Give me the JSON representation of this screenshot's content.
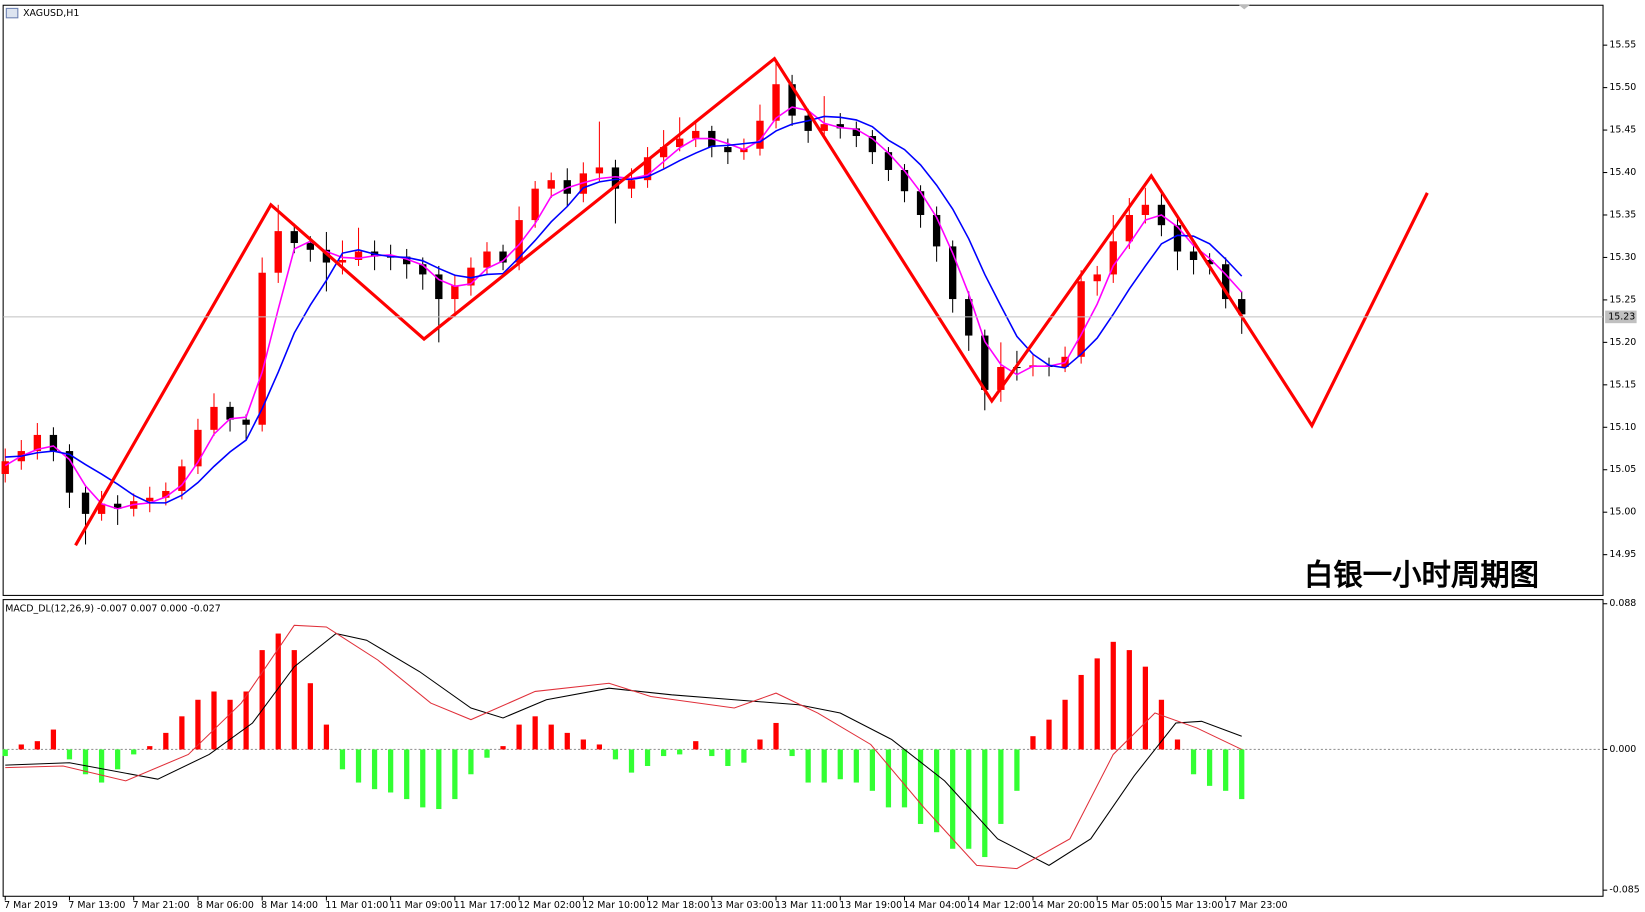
{
  "chart_data": [
    {
      "type": "candlestick",
      "title": "XAGUSD,H1",
      "annotation": "白银一小时周期图",
      "annotation_color": "#e00000",
      "xlim": [
        -0.13,
        99.5
      ],
      "ylim": [
        14.902,
        15.597
      ],
      "yticks": [
        14.95,
        {
          "value": 15,
          "label": "15.00"
        },
        15.05,
        {
          "value": 15.1,
          "label": "15.10"
        },
        15.15,
        {
          "value": 15.2,
          "label": "15.20"
        },
        15.25,
        {
          "value": 15.3,
          "label": "15.30"
        },
        15.35,
        {
          "value": 15.4,
          "label": "15.40"
        },
        15.45,
        {
          "value": 15.5,
          "label": "15.50"
        },
        15.55
      ],
      "last_price": 15.23,
      "up_color": "#ff0000",
      "down_color": "#000000",
      "open": [
        15.045,
        15.06,
        15.072,
        15.091,
        15.072,
        15.023,
        14.998,
        15.01,
        15.004,
        15.013,
        15.017,
        15.025,
        15.054,
        15.097,
        15.124,
        15.109,
        15.103,
        15.282,
        15.331,
        15.317,
        15.309,
        15.294,
        15.297,
        15.307,
        15.301,
        15.301,
        15.292,
        15.28,
        15.251,
        15.267,
        15.288,
        15.307,
        15.294,
        15.344,
        15.381,
        15.391,
        15.375,
        15.399,
        15.406,
        15.381,
        15.391,
        15.418,
        15.43,
        15.44,
        15.449,
        15.43,
        15.424,
        15.428,
        15.461,
        15.504,
        15.467,
        15.449,
        15.457,
        15.452,
        15.443,
        15.424,
        15.403,
        15.378,
        15.35,
        15.313,
        15.251,
        15.208,
        15.144,
        15.171,
        15.171,
        15.173,
        15.171,
        15.183,
        15.272,
        15.28,
        15.319,
        15.35,
        15.362,
        15.338,
        15.307,
        15.297,
        15.292,
        15.251
      ],
      "high": [
        15.075,
        15.085,
        15.105,
        15.1,
        15.08,
        15.03,
        15.025,
        15.02,
        15.022,
        15.03,
        15.035,
        15.062,
        15.11,
        15.14,
        15.13,
        15.115,
        15.3,
        15.362,
        15.34,
        15.325,
        15.33,
        15.32,
        15.335,
        15.32,
        15.315,
        15.31,
        15.3,
        15.29,
        15.28,
        15.3,
        15.318,
        15.315,
        15.36,
        15.39,
        15.4,
        15.405,
        15.412,
        15.46,
        15.415,
        15.405,
        15.43,
        15.45,
        15.465,
        15.46,
        15.455,
        15.44,
        15.44,
        15.48,
        15.53,
        15.515,
        15.475,
        15.49,
        15.47,
        15.46,
        15.45,
        15.43,
        15.41,
        15.385,
        15.36,
        15.32,
        15.26,
        15.215,
        15.2,
        15.19,
        15.185,
        15.182,
        15.195,
        15.285,
        15.29,
        15.35,
        15.37,
        15.382,
        15.38,
        15.345,
        15.315,
        15.305,
        15.3,
        15.26
      ],
      "low": [
        15.035,
        15.05,
        15.062,
        15.06,
        15.005,
        14.962,
        14.99,
        14.985,
        14.995,
        15.0,
        15.008,
        15.015,
        15.045,
        15.09,
        15.095,
        15.085,
        15.095,
        15.27,
        15.305,
        15.295,
        15.26,
        15.28,
        15.29,
        15.285,
        15.285,
        15.275,
        15.262,
        15.2,
        15.23,
        15.255,
        15.28,
        15.285,
        15.285,
        15.335,
        15.37,
        15.36,
        15.365,
        15.39,
        15.34,
        15.37,
        15.382,
        15.405,
        15.425,
        15.43,
        15.418,
        15.41,
        15.415,
        15.42,
        15.452,
        15.455,
        15.435,
        15.44,
        15.44,
        15.43,
        15.41,
        15.39,
        15.365,
        15.335,
        15.295,
        15.235,
        15.19,
        15.12,
        15.13,
        15.155,
        15.16,
        15.16,
        15.165,
        15.175,
        15.255,
        15.27,
        15.31,
        15.34,
        15.325,
        15.285,
        15.28,
        15.28,
        15.24,
        15.21
      ],
      "close": [
        15.06,
        15.072,
        15.091,
        15.072,
        15.023,
        14.998,
        15.01,
        15.004,
        15.013,
        15.017,
        15.025,
        15.054,
        15.097,
        15.124,
        15.109,
        15.103,
        15.282,
        15.331,
        15.317,
        15.309,
        15.294,
        15.297,
        15.307,
        15.301,
        15.301,
        15.292,
        15.28,
        15.251,
        15.267,
        15.288,
        15.307,
        15.294,
        15.344,
        15.381,
        15.391,
        15.375,
        15.399,
        15.406,
        15.381,
        15.391,
        15.418,
        15.43,
        15.44,
        15.449,
        15.43,
        15.424,
        15.428,
        15.461,
        15.504,
        15.467,
        15.449,
        15.457,
        15.452,
        15.443,
        15.424,
        15.403,
        15.378,
        15.35,
        15.313,
        15.251,
        15.208,
        15.144,
        15.171,
        15.171,
        15.173,
        15.171,
        15.183,
        15.272,
        15.28,
        15.319,
        15.35,
        15.362,
        15.338,
        15.307,
        15.297,
        15.292,
        15.251,
        15.233
      ],
      "series": [
        {
          "color": "#ff00ff",
          "values": [
            15.055,
            15.066,
            15.074,
            15.078,
            15.062,
            15.031,
            15.01,
            15.004,
            15.009,
            15.011,
            15.018,
            15.032,
            15.059,
            15.092,
            15.11,
            15.112,
            15.165,
            15.239,
            15.31,
            15.319,
            15.307,
            15.3,
            15.299,
            15.302,
            15.303,
            15.298,
            15.291,
            15.274,
            15.266,
            15.269,
            15.287,
            15.296,
            15.315,
            15.34,
            15.372,
            15.382,
            15.388,
            15.393,
            15.395,
            15.393,
            15.397,
            15.413,
            15.429,
            15.44,
            15.44,
            15.434,
            15.427,
            15.438,
            15.464,
            15.477,
            15.473,
            15.458,
            15.453,
            15.451,
            15.44,
            15.423,
            15.402,
            15.377,
            15.347,
            15.305,
            15.257,
            15.201,
            15.174,
            15.162,
            15.172,
            15.172,
            15.176,
            15.209,
            15.245,
            15.29,
            15.316,
            15.344,
            15.35,
            15.336,
            15.314,
            15.299,
            15.28,
            15.259
          ]
        },
        {
          "color": "#0000ff",
          "values": [
            15.065,
            15.066,
            15.07,
            15.072,
            15.068,
            15.056,
            15.045,
            15.033,
            15.02,
            15.011,
            15.011,
            15.02,
            15.035,
            15.054,
            15.071,
            15.085,
            15.122,
            15.165,
            15.211,
            15.244,
            15.273,
            15.305,
            15.309,
            15.304,
            15.301,
            15.3,
            15.296,
            15.287,
            15.279,
            15.276,
            15.28,
            15.281,
            15.3,
            15.32,
            15.342,
            15.36,
            15.382,
            15.389,
            15.392,
            15.392,
            15.395,
            15.404,
            15.414,
            15.423,
            15.431,
            15.432,
            15.434,
            15.436,
            15.449,
            15.457,
            15.461,
            15.466,
            15.465,
            15.462,
            15.454,
            15.438,
            15.427,
            15.409,
            15.385,
            15.357,
            15.322,
            15.28,
            15.243,
            15.207,
            15.186,
            15.173,
            15.17,
            15.186,
            15.205,
            15.233,
            15.263,
            15.29,
            15.316,
            15.326,
            15.325,
            15.316,
            15.298,
            15.278
          ]
        }
      ],
      "zigzag": {
        "color": "#ff0000",
        "x": [
          4.38,
          16.54,
          26.08,
          47.9,
          61.44,
          71.37,
          81.37,
          88.56
        ],
        "values": [
          14.961,
          15.362,
          15.204,
          15.534,
          15.131,
          15.396,
          15.102,
          15.376
        ]
      }
    },
    {
      "type": "macd",
      "title": "MACD_DL(12,26,9) -0.007 0.007 0.000 -0.027",
      "xlim": [
        -0.13,
        99.5
      ],
      "ylim": [
        -0.0887,
        0.0905
      ],
      "yticks": [
        -0.085,
        {
          "value": 0,
          "label": "0.000"
        },
        0.088
      ],
      "zero_line": true,
      "xticks": [
        {
          "value": 0,
          "label": "7 Mar 2019"
        },
        {
          "value": 4,
          "label": "7 Mar 13:00"
        },
        {
          "value": 8,
          "label": "7 Mar 21:00"
        },
        {
          "value": 12,
          "label": "8 Mar 06:00"
        },
        {
          "value": 16,
          "label": "8 Mar 14:00"
        },
        {
          "value": 20,
          "label": "11 Mar 01:00"
        },
        {
          "value": 24,
          "label": "11 Mar 09:00"
        },
        {
          "value": 28,
          "label": "11 Mar 17:00"
        },
        {
          "value": 32,
          "label": "12 Mar 02:00"
        },
        {
          "value": 36,
          "label": "12 Mar 10:00"
        },
        {
          "value": 40,
          "label": "12 Mar 18:00"
        },
        {
          "value": 44,
          "label": "13 Mar 03:00"
        },
        {
          "value": 48,
          "label": "13 Mar 11:00"
        },
        {
          "value": 52,
          "label": "13 Mar 19:00"
        },
        {
          "value": 56,
          "label": "14 Mar 04:00"
        },
        {
          "value": 60,
          "label": "14 Mar 12:00"
        },
        {
          "value": 64,
          "label": "14 Mar 20:00"
        },
        {
          "value": 68,
          "label": "15 Mar 05:00"
        },
        {
          "value": 72,
          "label": "15 Mar 13:00"
        },
        {
          "value": 76,
          "label": "17 Mar 23:00"
        }
      ],
      "positive_color": "#ff0000",
      "negative_color": "#33ff33",
      "values": [
        -0.004,
        0.003,
        0.005,
        0.012,
        -0.006,
        -0.015,
        -0.02,
        -0.012,
        -0.003,
        0.002,
        0.01,
        0.02,
        0.03,
        0.035,
        0.03,
        0.035,
        0.06,
        0.07,
        0.06,
        0.04,
        0.015,
        -0.012,
        -0.02,
        -0.024,
        -0.026,
        -0.03,
        -0.035,
        -0.036,
        -0.03,
        -0.015,
        -0.005,
        0.002,
        0.015,
        0.02,
        0.015,
        0.01,
        0.006,
        0.003,
        -0.006,
        -0.014,
        -0.01,
        -0.004,
        -0.003,
        0.005,
        -0.004,
        -0.01,
        -0.008,
        0.006,
        0.016,
        -0.004,
        -0.02,
        -0.02,
        -0.018,
        -0.02,
        -0.025,
        -0.035,
        -0.035,
        -0.045,
        -0.05,
        -0.06,
        -0.06,
        -0.065,
        -0.045,
        -0.025,
        0.008,
        0.018,
        0.03,
        0.045,
        0.055,
        0.065,
        0.06,
        0.05,
        0.03,
        0.006,
        -0.015,
        -0.022,
        -0.025,
        -0.03
      ],
      "series": [
        {
          "color": "#000000",
          "x": [
            0,
            4,
            9.5,
            12.7,
            15.4,
            18,
            20.6,
            22.5,
            25.8,
            29,
            31,
            33.7,
            37.6,
            41.5,
            45.4,
            49.4,
            52,
            55.2,
            58.5,
            61.8,
            65,
            67.6,
            70.3,
            72.9,
            74.5,
            77
          ],
          "values": [
            -0.0095,
            -0.008,
            -0.018,
            -0.003,
            0.016,
            0.05,
            0.07,
            0.066,
            0.047,
            0.025,
            0.019,
            0.03,
            0.037,
            0.033,
            0.03,
            0.027,
            0.022,
            0.006,
            -0.019,
            -0.054,
            -0.07,
            -0.054,
            -0.016,
            0.016,
            0.017,
            0.008
          ]
        },
        {
          "color": "#e0303a",
          "x": [
            0,
            3.6,
            7.5,
            11.4,
            14.7,
            18,
            20,
            23.2,
            26.5,
            29,
            33,
            37.6,
            40.2,
            45.4,
            48,
            50.6,
            53.9,
            57.2,
            60.5,
            63,
            66.3,
            69,
            71.6,
            74.2,
            77
          ],
          "values": [
            -0.011,
            -0.01,
            -0.019,
            -0.003,
            0.028,
            0.075,
            0.074,
            0.054,
            0.028,
            0.018,
            0.035,
            0.04,
            0.032,
            0.025,
            0.034,
            0.022,
            0.003,
            -0.035,
            -0.07,
            -0.072,
            -0.054,
            -0.003,
            0.022,
            0.013,
            0
          ]
        }
      ]
    }
  ]
}
